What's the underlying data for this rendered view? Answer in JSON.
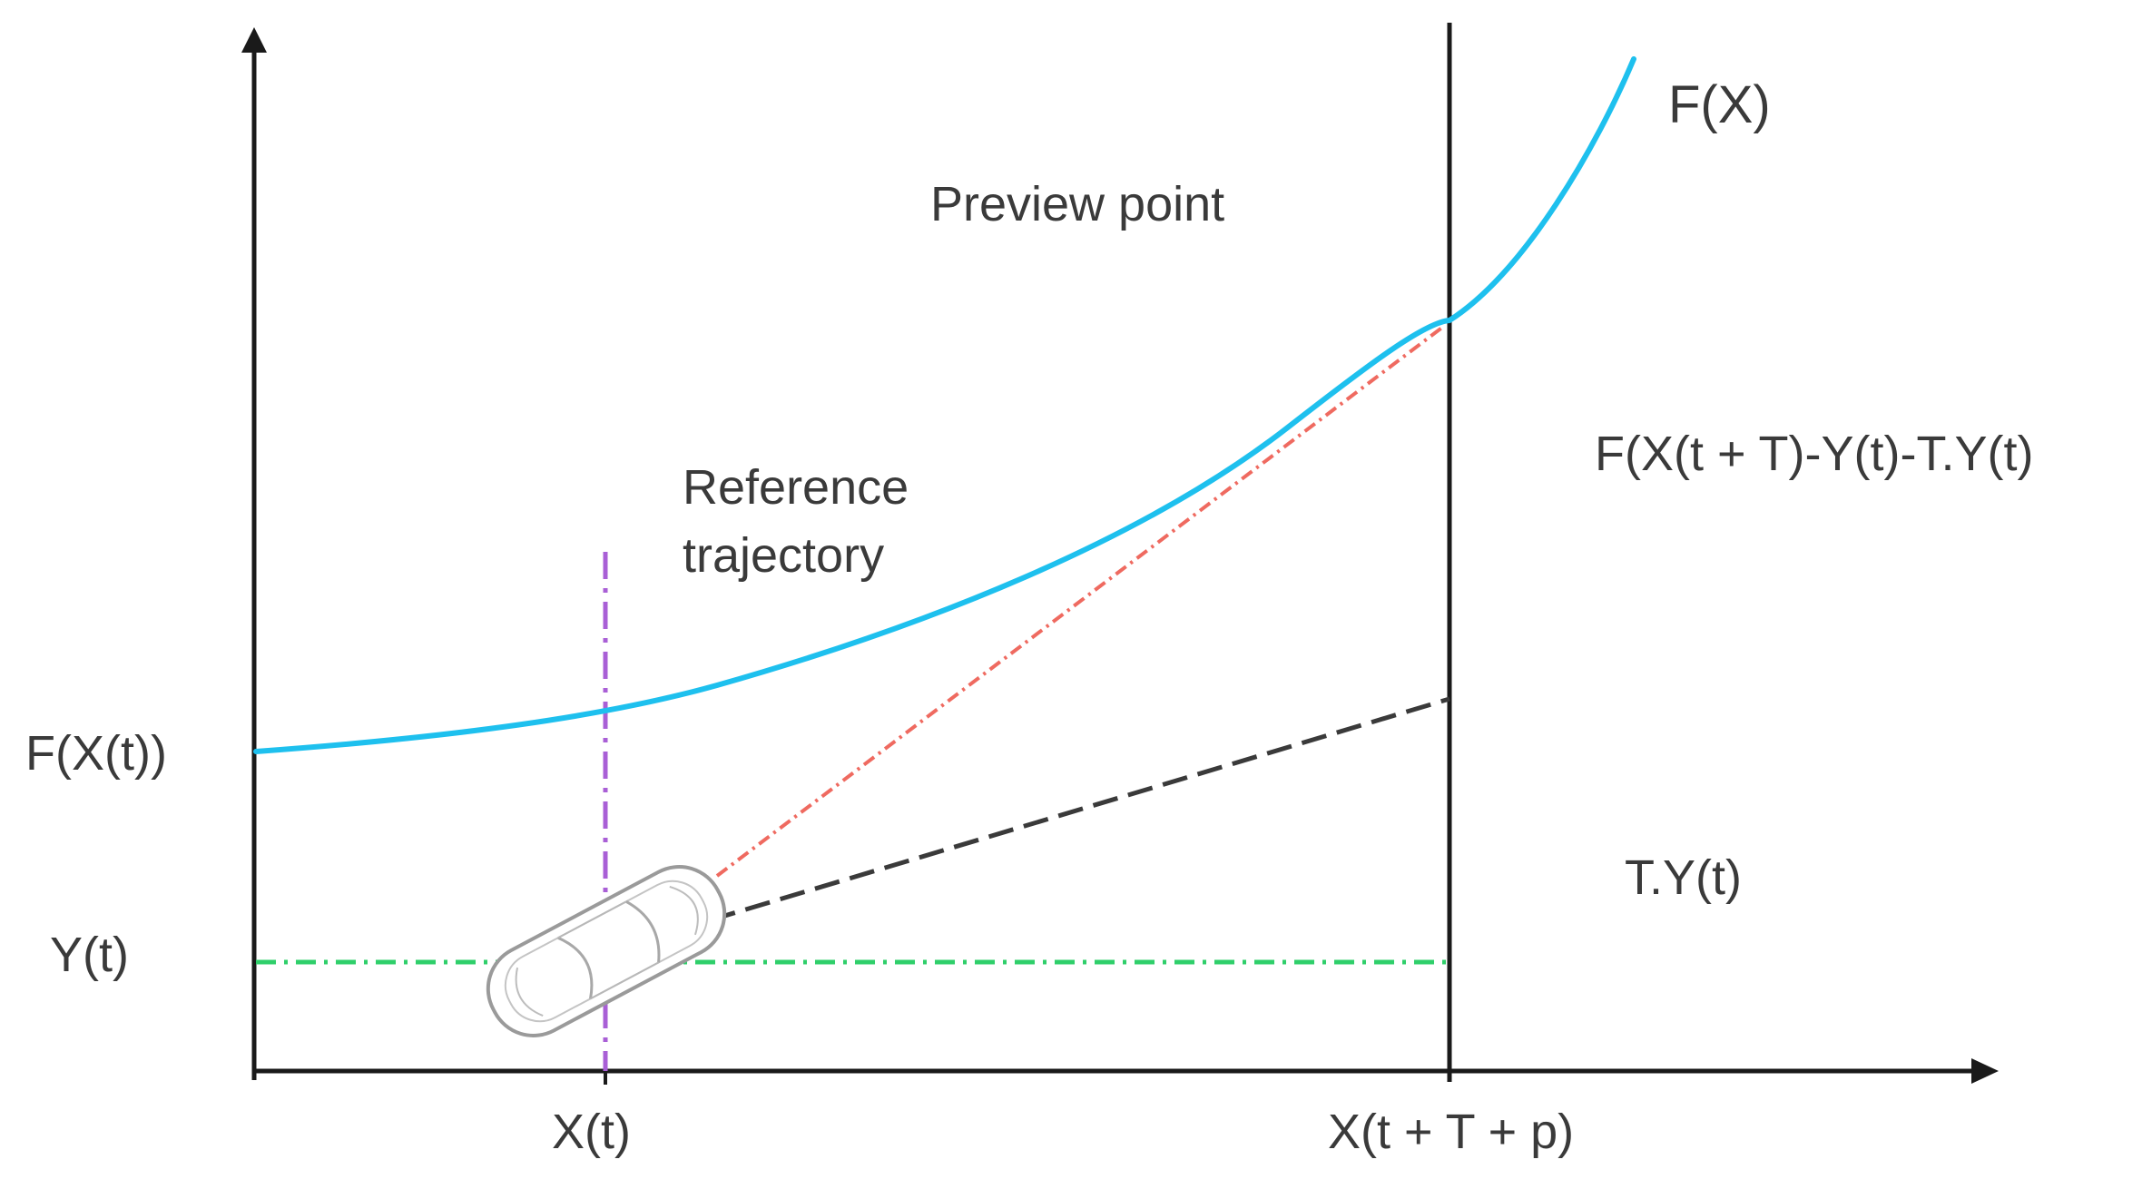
{
  "labels": {
    "curve_name": "F(X)",
    "preview_point": "Preview point",
    "reference_line1": "Reference",
    "reference_line2": "trajectory",
    "error_expression": "F(X(t + T)-Y(t)-T.Y(t)",
    "f_at_x": "F(X(t))",
    "y_at_t": "Y(t)",
    "t_times_y": "T.Y(t)",
    "x_at_t": "X(t)",
    "x_preview": "X(t + T + p)"
  },
  "colors": {
    "axis": "#1a1a1a",
    "reference_curve": "#1ec0ee",
    "current_position_line": "#a95fd6",
    "current_y_line": "#2fcf6a",
    "preview_line": "#ef6a60",
    "heading_line": "#3a3a3a",
    "vehicle": "#9a9a9a"
  },
  "icons": {
    "vehicle": "car-top-view-icon"
  }
}
